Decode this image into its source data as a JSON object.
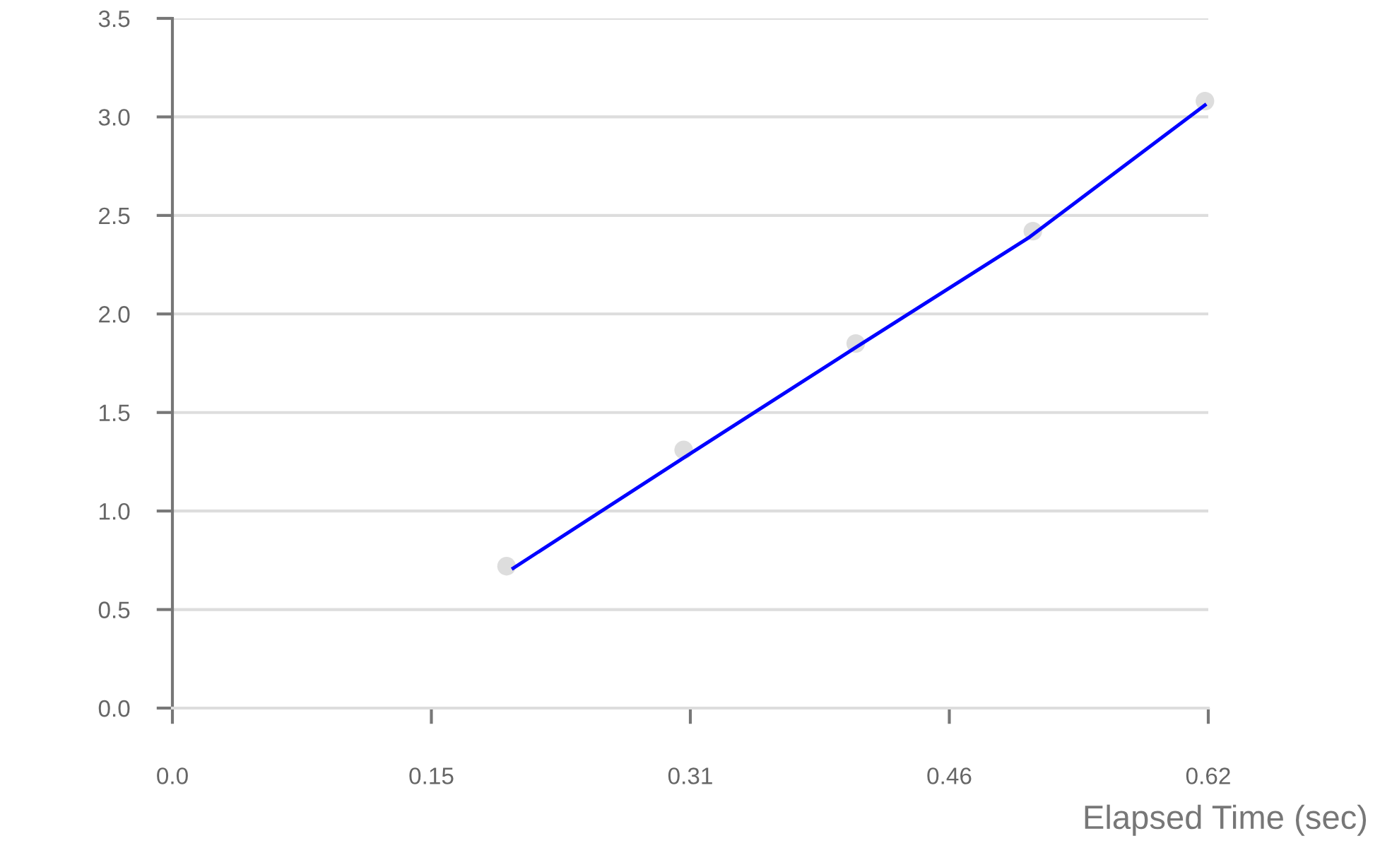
{
  "chart_data": {
    "type": "line",
    "xlabel": "Elapsed Time (sec)",
    "xlim": [
      0,
      0.62
    ],
    "ylim": [
      0,
      3.5
    ],
    "xticks": [
      {
        "value": 0,
        "label": "0.0"
      },
      {
        "value": 0.155,
        "label": "0.15"
      },
      {
        "value": 0.31,
        "label": "0.31"
      },
      {
        "value": 0.465,
        "label": "0.46"
      },
      {
        "value": 0.62,
        "label": "0.62"
      }
    ],
    "yticks": [
      {
        "value": 0,
        "label": "0.0"
      },
      {
        "value": 0.5,
        "label": "0.5"
      },
      {
        "value": 1,
        "label": "1.0"
      },
      {
        "value": 1.5,
        "label": "1.5"
      },
      {
        "value": 2,
        "label": "2.0"
      },
      {
        "value": 2.5,
        "label": "2.5"
      },
      {
        "value": 3,
        "label": "3.0"
      },
      {
        "value": 3.5,
        "label": "3.5"
      }
    ],
    "grid": "y",
    "series": [
      {
        "type": "scatter",
        "marker": "circle",
        "color": "#dddddd",
        "x": [
          0.2,
          0.306,
          0.409,
          0.515,
          0.618
        ],
        "values": [
          0.72,
          1.31,
          1.85,
          2.42,
          3.08
        ]
      },
      {
        "marker": "none",
        "color": "#0000ff",
        "x": [
          0.204,
          0.306,
          0.409,
          0.513,
          0.618
        ],
        "values": [
          0.71,
          1.27,
          1.83,
          2.39,
          3.06
        ]
      }
    ]
  }
}
